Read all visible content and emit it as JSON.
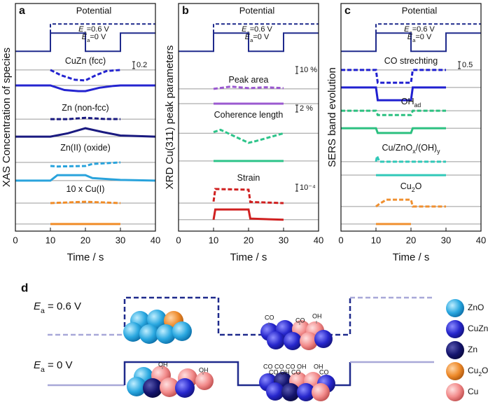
{
  "chart_data": [
    {
      "type": "line",
      "panel": "a",
      "title": "Potential",
      "xlabel": "Time / s",
      "ylabel": "XAS Concentration of species",
      "xlim": [
        0,
        40
      ],
      "xticks": [
        0,
        10,
        20,
        30,
        40
      ],
      "ylim": [
        0,
        100
      ],
      "trace_labels": [
        "CuZn (fcc)",
        "Zn (non-fcc)",
        "Zn(II) (oxide)",
        "10 x Cu(I)"
      ],
      "scale_labels": [
        "0.2"
      ],
      "hlines": [
        70.8,
        64,
        49.2,
        41.5,
        30.2,
        22.2,
        12.3,
        3.1
      ],
      "series": [
        {
          "name": "Ea=0.6 V",
          "color": "#1f2a8c",
          "dashed": true,
          "x": [
            10,
            10,
            40
          ],
          "values": [
            87,
            91,
            91
          ]
        },
        {
          "name": "Ea=0 V",
          "color": "#1f2a8c",
          "dashed": false,
          "x": [
            0,
            10,
            10,
            20,
            20,
            30,
            30,
            40
          ],
          "values": [
            79,
            79,
            87,
            87,
            79,
            79,
            87,
            87
          ]
        },
        {
          "color": "#2424d0",
          "dashed": true,
          "x": [
            10,
            13,
            17,
            20,
            23,
            26,
            30
          ],
          "values": [
            70.8,
            68.5,
            66.5,
            66.2,
            68.5,
            70.3,
            70.8
          ]
        },
        {
          "color": "#2424d0",
          "dashed": false,
          "x": [
            0,
            10,
            14,
            18,
            20,
            24,
            28,
            30,
            40
          ],
          "values": [
            64,
            64,
            62,
            61.5,
            61.5,
            63,
            63.8,
            64,
            64
          ]
        },
        {
          "color": "#1a1a80",
          "dashed": true,
          "x": [
            10,
            15,
            20,
            25,
            30
          ],
          "values": [
            49.2,
            49.2,
            49.8,
            49.3,
            49.2
          ]
        },
        {
          "color": "#1a1a80",
          "dashed": false,
          "x": [
            0,
            10,
            15,
            20,
            25,
            30,
            40
          ],
          "values": [
            41.5,
            41.5,
            43,
            45.2,
            43.5,
            42,
            41.5
          ]
        },
        {
          "color": "#29a3dc",
          "dashed": true,
          "x": [
            10,
            12,
            20,
            22,
            30
          ],
          "values": [
            28.6,
            28.4,
            28.6,
            29.5,
            30.2
          ]
        },
        {
          "color": "#29a3dc",
          "dashed": false,
          "x": [
            0,
            10,
            12,
            20,
            22,
            30,
            40
          ],
          "values": [
            22.2,
            22.2,
            24.6,
            24.6,
            23.3,
            22.5,
            22.2
          ]
        },
        {
          "color": "#f08c28",
          "dashed": true,
          "x": [
            10,
            20,
            30
          ],
          "values": [
            12.3,
            12.9,
            12.3
          ]
        },
        {
          "color": "#f08c28",
          "dashed": false,
          "x": [
            10,
            30
          ],
          "values": [
            3.1,
            3.1
          ]
        }
      ]
    },
    {
      "type": "line",
      "panel": "b",
      "title": "Potential",
      "xlabel": "Time / s",
      "ylabel": "XRD Cu(311) peak parameters",
      "xlim": [
        0,
        40
      ],
      "xticks": [
        0,
        10,
        20,
        30,
        40
      ],
      "ylim": [
        0,
        100
      ],
      "trace_labels": [
        "Peak area",
        "Coherence length",
        "Strain"
      ],
      "scale_labels": [
        "10 %",
        "2 %",
        "10⁻⁴"
      ],
      "hlines": [
        62.5,
        56,
        43,
        30.8,
        12.3,
        5
      ],
      "series": [
        {
          "name": "Ea=0.6 V",
          "color": "#1f2a8c",
          "dashed": true,
          "x": [
            10,
            10,
            40
          ],
          "values": [
            87,
            91,
            91
          ]
        },
        {
          "name": "Ea=0 V",
          "color": "#1f2a8c",
          "dashed": false,
          "x": [
            0,
            10,
            10,
            20,
            20,
            30,
            30,
            40
          ],
          "values": [
            79,
            79,
            87,
            87,
            79,
            79,
            87,
            87
          ]
        },
        {
          "color": "#9b59d0",
          "dashed": true,
          "x": [
            10,
            15,
            20,
            25,
            30
          ],
          "values": [
            62.5,
            63.5,
            62.8,
            63.2,
            62.8
          ]
        },
        {
          "color": "#9b59d0",
          "dashed": false,
          "x": [
            10,
            30
          ],
          "values": [
            56,
            56
          ]
        },
        {
          "color": "#2ec48a",
          "dashed": true,
          "x": [
            10,
            12,
            20,
            22,
            30
          ],
          "values": [
            43.5,
            44.5,
            38.8,
            39.5,
            43
          ]
        },
        {
          "color": "#2ec48a",
          "dashed": false,
          "x": [
            10,
            30
          ],
          "values": [
            30.8,
            30.8
          ]
        },
        {
          "color": "#d02020",
          "dashed": true,
          "x": [
            10,
            10.5,
            20,
            20.5,
            30
          ],
          "values": [
            13,
            18.5,
            18.2,
            12.8,
            12.3
          ]
        },
        {
          "color": "#d02020",
          "dashed": false,
          "x": [
            10,
            10.5,
            20,
            20.5,
            30
          ],
          "values": [
            5,
            9.5,
            9.5,
            5.5,
            5
          ]
        }
      ]
    },
    {
      "type": "line",
      "panel": "c",
      "title": "Potential",
      "xlabel": "Time / s",
      "ylabel": "SERS band evolution",
      "xlim": [
        0,
        40
      ],
      "xticks": [
        0,
        10,
        20,
        30,
        40
      ],
      "ylim": [
        0,
        100
      ],
      "trace_labels": [
        "CO strechting",
        "OHad",
        "Cu/ZnOx/(OH)y",
        "Cu2O"
      ],
      "scale_labels": [
        "0.5"
      ],
      "hlines": [
        70.8,
        63.1,
        52.9,
        45.2,
        30.5,
        24.6,
        10.8,
        3.1
      ],
      "series": [
        {
          "name": "Ea=0.6 V",
          "color": "#1f2a8c",
          "dashed": true,
          "x": [
            10,
            10,
            40
          ],
          "values": [
            87,
            91,
            91
          ]
        },
        {
          "name": "Ea=0 V",
          "color": "#1f2a8c",
          "dashed": false,
          "x": [
            0,
            10,
            10,
            20,
            20,
            30,
            30,
            40
          ],
          "values": [
            79,
            79,
            87,
            87,
            79,
            79,
            87,
            87
          ]
        },
        {
          "color": "#2020d0",
          "dashed": true,
          "x": [
            0,
            10,
            10.5,
            20,
            20.5,
            30
          ],
          "values": [
            70.8,
            70.8,
            65.2,
            65.2,
            70.8,
            70.8
          ]
        },
        {
          "color": "#2020d0",
          "dashed": false,
          "x": [
            0,
            10,
            10.5,
            20,
            20.5,
            30
          ],
          "values": [
            63.1,
            63.1,
            57.5,
            57.5,
            63.1,
            63.1
          ]
        },
        {
          "color": "#2cc080",
          "dashed": true,
          "x": [
            0,
            10,
            10.5,
            20,
            20.5,
            30
          ],
          "values": [
            52.9,
            52.9,
            51,
            51,
            52.9,
            52.9
          ]
        },
        {
          "color": "#2cc080",
          "dashed": false,
          "x": [
            0,
            10,
            10.5,
            20,
            20.5,
            30
          ],
          "values": [
            45.2,
            45.2,
            43.1,
            43.1,
            45.2,
            45.2
          ]
        },
        {
          "color": "#30c8b8",
          "dashed": true,
          "x": [
            10,
            10.3,
            11,
            30
          ],
          "values": [
            30.5,
            33,
            30.5,
            30.5
          ]
        },
        {
          "color": "#30c8b8",
          "dashed": false,
          "x": [
            10,
            30
          ],
          "values": [
            24.6,
            24.6
          ]
        },
        {
          "color": "#f09030",
          "dashed": true,
          "x": [
            10,
            11,
            13,
            20,
            20.5,
            30
          ],
          "values": [
            10.8,
            12,
            13.8,
            13.8,
            10.8,
            10.8
          ]
        },
        {
          "color": "#f09030",
          "dashed": false,
          "x": [
            10,
            20
          ],
          "values": [
            3.1,
            3.1
          ]
        }
      ]
    }
  ],
  "diagram": {
    "label": "d",
    "levels": [
      "Ea = 0.6 V",
      "Ea = 0 V"
    ],
    "legend": [
      "ZnO",
      "CuZn",
      "Zn",
      "Cu2O",
      "Cu"
    ],
    "adsorbates": [
      "CO",
      "CO",
      "OH",
      "OH",
      "OH",
      "CO",
      "CO",
      "CO",
      "OH",
      "OH",
      "CO",
      "OH",
      "CO",
      "CO"
    ]
  }
}
